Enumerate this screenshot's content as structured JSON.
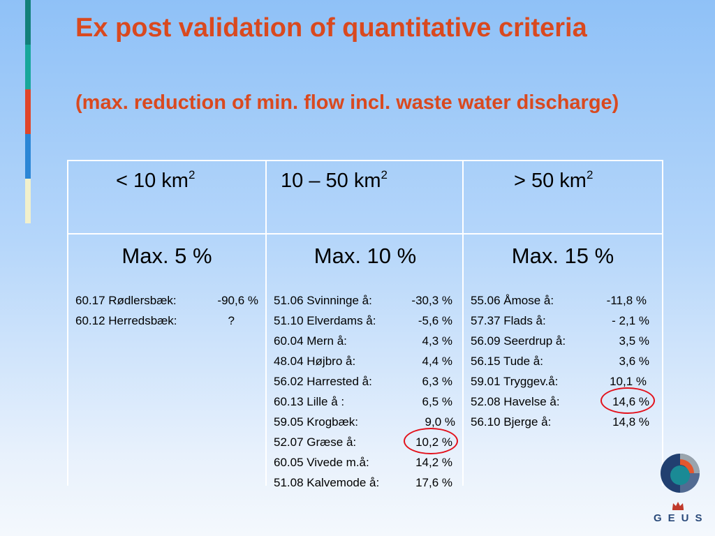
{
  "slide": {
    "title": "Ex post validation of quantitative criteria",
    "subtitle": "(max. reduction of min. flow incl. waste water discharge)",
    "stripe_colors": [
      "#13807a",
      "#17a79a",
      "#e0452a",
      "#2b86d6",
      "#f1f0cc"
    ]
  },
  "table": {
    "columns": [
      {
        "header": "< 10 km",
        "header_sup": "2",
        "max_label": "Max. 5 %",
        "entries": [
          {
            "name": "60.17 Rødlersbæk:",
            "value": "-90,6 %"
          },
          {
            "name": "60.12 Herredsbæk:",
            "value": "?"
          }
        ]
      },
      {
        "header": "10 – 50 km",
        "header_sup": "2",
        "max_label": "Max. 10 %",
        "entries": [
          {
            "name": "51.06 Svinninge å:",
            "value": "-30,3 %"
          },
          {
            "name": "51.10 Elverdams å:",
            "value": "-5,6 %"
          },
          {
            "name": "60.04 Mern å:",
            "value": "4,3 %"
          },
          {
            "name": "48.04 Højbro å:",
            "value": "4,4 %"
          },
          {
            "name": "56.02 Harrested å:",
            "value": "6,3 %"
          },
          {
            "name": "60.13 Lille å :",
            "value": "6,5 %"
          },
          {
            "name": "59.05 Krogbæk:",
            "value": "9,0 %"
          },
          {
            "name": "52.07 Græse å:",
            "value": "10,2 %",
            "circled": true
          },
          {
            "name": "60.05 Vivede m.å:",
            "value": "14,2 %"
          },
          {
            "name": "51.08 Kalvemode å:",
            "value": "17,6 %"
          }
        ]
      },
      {
        "header": "> 50 km",
        "header_sup": "2",
        "max_label": "Max. 15 %",
        "entries": [
          {
            "name": "55.06 Åmose å:",
            "value": "-11,8 %"
          },
          {
            "name": "57.37 Flads å:",
            "value": "- 2,1 %"
          },
          {
            "name": "56.09 Seerdrup å:",
            "value": "3,5 %"
          },
          {
            "name": "56.15 Tude å:",
            "value": "3,6 %"
          },
          {
            "name": "59.01 Tryggev.å:",
            "value": "10,1 %"
          },
          {
            "name": "52.08 Havelse å:",
            "value": "14,6 %",
            "circled": true
          },
          {
            "name": "56.10 Bjerge å:",
            "value": "14,8 %"
          }
        ]
      }
    ]
  },
  "logo": {
    "text": "GEUS",
    "icon": "geus-logo-icon",
    "crown_icon": "crown-icon",
    "colors": {
      "teal": "#1a8a95",
      "navy": "#213f70",
      "orange": "#e4572e",
      "gray": "#9aa4ad"
    }
  }
}
